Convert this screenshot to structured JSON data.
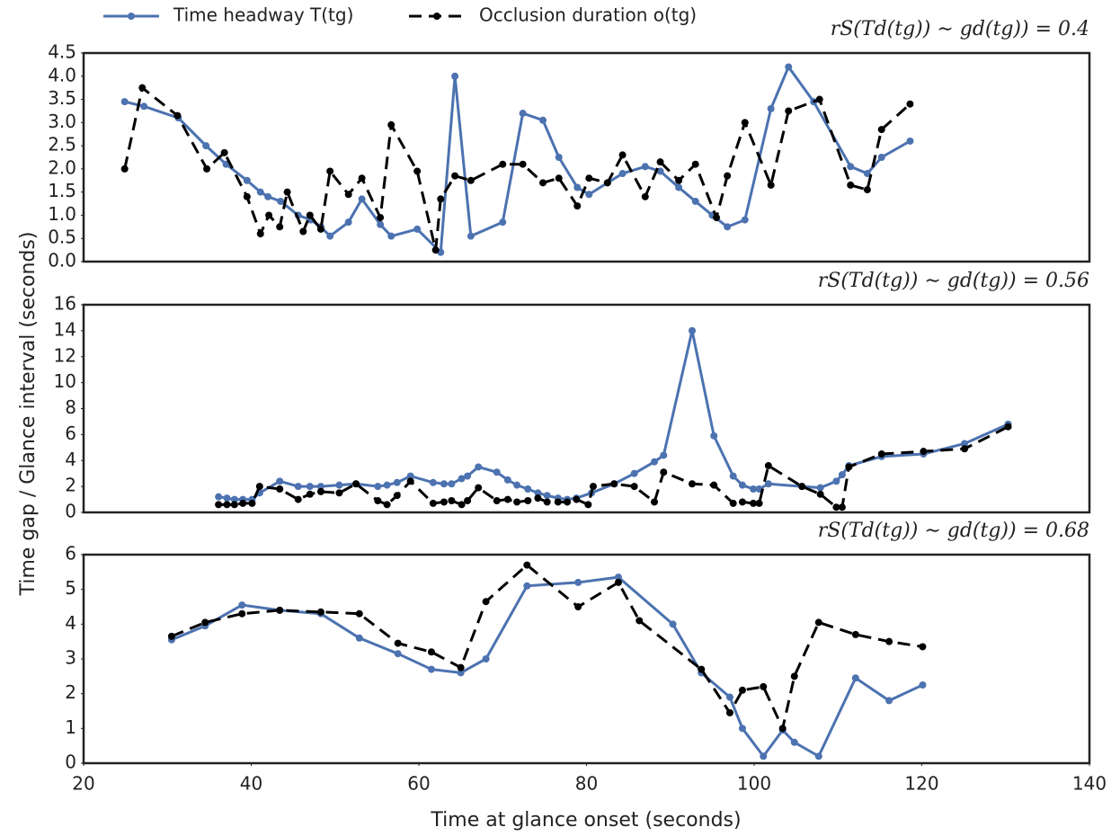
{
  "chart_data": [
    {
      "type": "line",
      "title": "rS(Td(tg)) ∼ gd(tg)) = 0.4",
      "xlim": [
        20,
        140
      ],
      "ylim": [
        0,
        4.5
      ],
      "yticks": [
        {
          "value": 0,
          "label": "0.0"
        },
        0.5,
        {
          "value": 1,
          "label": "1.0"
        },
        1.5,
        {
          "value": 2,
          "label": "2.0"
        },
        2.5,
        {
          "value": 3,
          "label": "3.0"
        },
        3.5,
        {
          "value": 4,
          "label": "4.0"
        },
        4.5
      ],
      "series": [
        {
          "name": "Time headway T(tg)",
          "color": "#4c72b0",
          "style": "solid",
          "x": [
            24.9,
            27.2,
            31.3,
            34.6,
            37.0,
            39.5,
            41.1,
            42.0,
            43.5,
            45.6,
            47.1,
            48.3,
            49.4,
            51.6,
            53.2,
            55.4,
            56.7,
            59.8,
            62.6,
            64.3,
            66.2,
            70.0,
            72.4,
            74.8,
            76.7,
            78.9,
            80.3,
            82.5,
            84.3,
            87.0,
            88.8,
            91.0,
            93.0,
            95.0,
            96.8,
            98.9,
            102.0,
            104.1,
            107.1,
            111.5,
            113.5,
            115.2,
            118.6
          ],
          "values": [
            3.45,
            3.35,
            3.1,
            2.5,
            2.1,
            1.75,
            1.5,
            1.4,
            1.3,
            1.0,
            0.9,
            0.75,
            0.55,
            0.85,
            1.35,
            0.8,
            0.55,
            0.7,
            0.2,
            4.0,
            0.55,
            0.85,
            3.2,
            3.05,
            2.25,
            1.6,
            1.45,
            1.7,
            1.9,
            2.05,
            1.95,
            1.6,
            1.3,
            1.0,
            0.75,
            0.9,
            3.3,
            4.2,
            3.45,
            2.05,
            1.9,
            2.25,
            2.6
          ]
        },
        {
          "name": "Occlusion duration o(tg)",
          "color": "#000000",
          "style": "dashed",
          "x": [
            24.9,
            27.0,
            31.2,
            34.7,
            36.8,
            39.5,
            41.1,
            42.1,
            43.4,
            44.3,
            46.2,
            47.0,
            48.3,
            49.4,
            51.6,
            53.2,
            55.4,
            56.7,
            59.8,
            62.0,
            62.6,
            64.3,
            66.2,
            70.0,
            72.4,
            74.8,
            76.7,
            78.9,
            80.3,
            82.5,
            84.3,
            87.0,
            88.8,
            91.0,
            93.0,
            95.5,
            96.8,
            98.9,
            102.0,
            104.1,
            107.8,
            111.5,
            113.5,
            115.2,
            118.6
          ],
          "values": [
            2.0,
            3.75,
            3.15,
            2.0,
            2.35,
            1.4,
            0.6,
            1.0,
            0.75,
            1.5,
            0.65,
            1.0,
            0.7,
            1.95,
            1.45,
            1.8,
            0.95,
            2.95,
            1.95,
            0.25,
            1.35,
            1.85,
            1.75,
            2.1,
            2.1,
            1.7,
            1.8,
            1.2,
            1.8,
            1.7,
            2.3,
            1.4,
            2.15,
            1.75,
            2.1,
            0.95,
            1.85,
            3.0,
            1.65,
            3.25,
            3.5,
            1.65,
            1.55,
            2.85,
            3.4
          ]
        }
      ]
    },
    {
      "type": "line",
      "title": "rS(Td(tg)) ∼ gd(tg)) = 0.56",
      "ylabel": "Time gap / Glance interval (seconds)",
      "xlim": [
        20,
        140
      ],
      "ylim": [
        0,
        16
      ],
      "yticks": [
        0,
        2,
        4,
        6,
        8,
        10,
        12,
        14,
        16
      ],
      "series": [
        {
          "color": "#4c72b0",
          "style": "solid",
          "x": [
            36.1,
            37.1,
            38.0,
            39.0,
            40.1,
            41.0,
            43.4,
            45.6,
            47.0,
            48.3,
            50.5,
            52.5,
            55.1,
            56.2,
            57.4,
            59.0,
            61.7,
            63.0,
            63.9,
            65.1,
            65.8,
            67.1,
            69.3,
            70.6,
            71.7,
            73.0,
            74.2,
            75.3,
            76.6,
            77.7,
            78.8,
            80.6,
            83.3,
            85.7,
            88.1,
            89.2,
            92.6,
            95.2,
            97.5,
            98.6,
            99.9,
            100.6,
            101.7,
            105.7,
            107.9,
            109.8,
            110.5,
            111.3,
            115.2,
            120.2,
            125.1,
            130.3
          ],
          "values": [
            1.2,
            1.1,
            1.0,
            1.0,
            1.0,
            1.5,
            2.4,
            2.0,
            2.0,
            2.0,
            2.1,
            2.2,
            2.0,
            2.1,
            2.3,
            2.8,
            2.3,
            2.2,
            2.2,
            2.6,
            2.8,
            3.5,
            3.1,
            2.5,
            2.1,
            1.8,
            1.5,
            1.3,
            1.1,
            1.0,
            1.1,
            1.5,
            2.2,
            3.0,
            3.9,
            4.4,
            14.0,
            5.9,
            2.8,
            2.1,
            1.8,
            1.8,
            2.2,
            2.0,
            1.9,
            2.4,
            2.9,
            3.6,
            4.3,
            4.5,
            5.3,
            6.8
          ]
        },
        {
          "color": "#000000",
          "style": "dashed",
          "x": [
            36.1,
            37.1,
            38.0,
            39.0,
            40.1,
            41.0,
            43.4,
            45.6,
            47.0,
            48.3,
            50.5,
            52.5,
            55.1,
            56.2,
            57.4,
            59.0,
            61.7,
            63.0,
            63.9,
            65.1,
            65.8,
            67.1,
            69.3,
            70.6,
            71.7,
            73.0,
            74.2,
            75.3,
            76.6,
            77.7,
            78.8,
            80.2,
            80.8,
            83.3,
            85.7,
            88.1,
            89.2,
            92.6,
            95.2,
            97.5,
            98.6,
            99.9,
            100.6,
            101.7,
            105.7,
            107.9,
            109.8,
            110.5,
            111.3,
            115.2,
            120.2,
            125.1,
            130.3
          ],
          "values": [
            0.6,
            0.6,
            0.6,
            0.7,
            0.7,
            2.0,
            1.8,
            1.0,
            1.4,
            1.6,
            1.5,
            2.2,
            0.9,
            0.6,
            1.3,
            2.4,
            0.7,
            0.8,
            0.9,
            0.6,
            0.9,
            1.9,
            0.9,
            1.0,
            0.8,
            0.9,
            1.1,
            0.8,
            0.8,
            0.8,
            1.0,
            0.6,
            2.0,
            2.2,
            2.0,
            0.8,
            3.1,
            2.2,
            2.1,
            0.7,
            0.8,
            0.7,
            0.7,
            3.6,
            2.0,
            1.4,
            0.4,
            0.4,
            3.5,
            4.5,
            4.7,
            4.9,
            6.6
          ]
        }
      ]
    },
    {
      "type": "line",
      "title": "rS(Td(tg)) ∼ gd(tg)) = 0.68",
      "xlabel": "Time at glance onset (seconds)",
      "xlim": [
        20,
        140
      ],
      "xticks": [
        20,
        40,
        60,
        80,
        100,
        120,
        140
      ],
      "ylim": [
        0,
        6
      ],
      "yticks": [
        0,
        1,
        2,
        3,
        4,
        5,
        6
      ],
      "series": [
        {
          "color": "#4c72b0",
          "style": "solid",
          "x": [
            30.5,
            34.5,
            38.9,
            43.4,
            48.3,
            52.9,
            57.5,
            61.5,
            65.0,
            68.0,
            72.9,
            79.0,
            83.8,
            90.3,
            93.7,
            97.1,
            98.6,
            101.1,
            103.4,
            104.8,
            107.7,
            112.1,
            116.1,
            120.1
          ],
          "values": [
            3.55,
            3.95,
            4.55,
            4.4,
            4.3,
            3.6,
            3.15,
            2.7,
            2.6,
            3.0,
            5.1,
            5.2,
            5.35,
            4.0,
            2.6,
            1.9,
            1.0,
            0.2,
            0.95,
            0.6,
            0.2,
            2.45,
            1.8,
            2.25
          ]
        },
        {
          "color": "#000000",
          "style": "dashed",
          "x": [
            30.5,
            34.5,
            38.9,
            43.4,
            48.3,
            52.9,
            57.5,
            61.5,
            65.0,
            68.0,
            72.9,
            79.0,
            83.8,
            86.3,
            93.7,
            97.1,
            98.6,
            101.1,
            103.4,
            104.8,
            107.7,
            112.1,
            116.1,
            120.1
          ],
          "values": [
            3.65,
            4.05,
            4.3,
            4.4,
            4.35,
            4.3,
            3.45,
            3.2,
            2.75,
            4.65,
            5.7,
            4.5,
            5.2,
            4.1,
            2.7,
            1.45,
            2.1,
            2.2,
            1.0,
            2.5,
            4.05,
            3.7,
            3.5,
            3.35
          ]
        }
      ]
    }
  ]
}
